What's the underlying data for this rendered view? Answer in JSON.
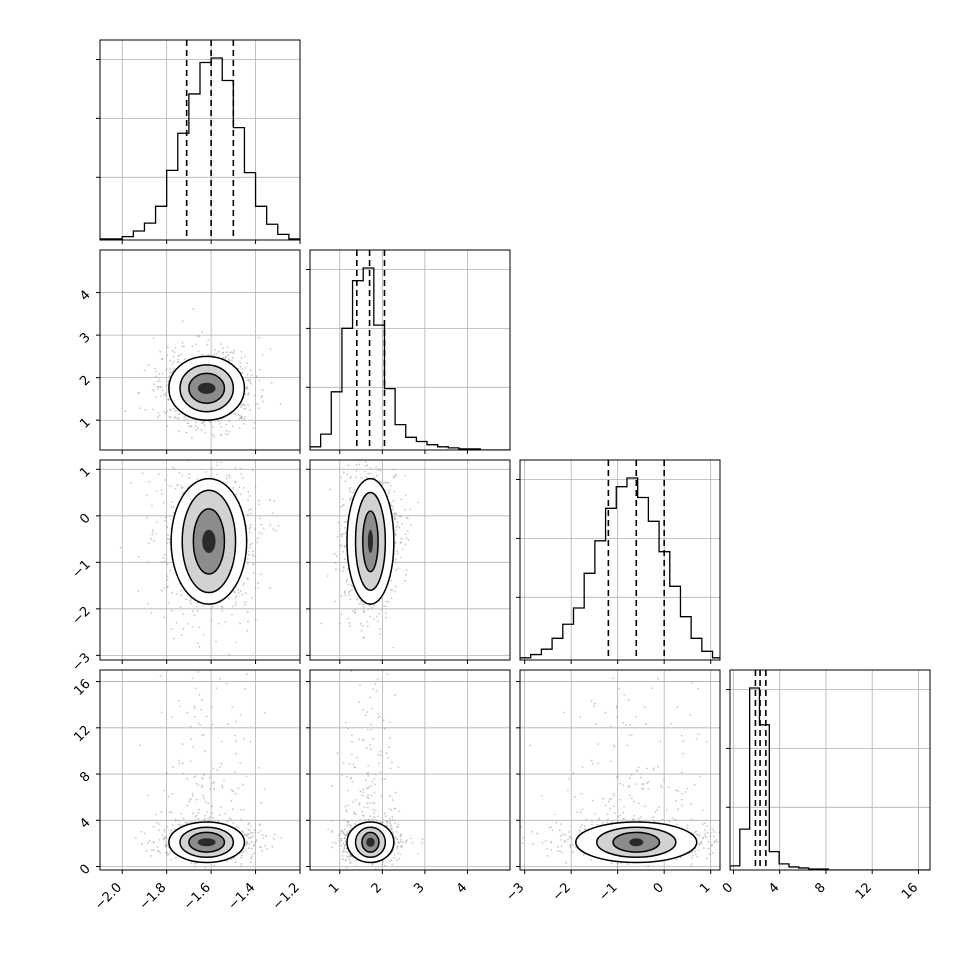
{
  "chart_data": {
    "type": "corner",
    "n_params": 4,
    "grid": true,
    "quantile_lines": "dashed",
    "ranges": [
      [
        -2.1,
        -1.2
      ],
      [
        0.3,
        5.0
      ],
      [
        -3.1,
        1.2
      ],
      [
        -0.3,
        17.0
      ]
    ],
    "tick_labels": [
      [
        "−2.0",
        "−1.8",
        "−1.6",
        "−1.4",
        "−1.2"
      ],
      [
        "1",
        "2",
        "3",
        "4"
      ],
      [
        "−3",
        "−2",
        "−1",
        "0",
        "1"
      ],
      [
        "0",
        "4",
        "8",
        "12",
        "16"
      ]
    ],
    "tick_values": [
      [
        -2.0,
        -1.8,
        -1.6,
        -1.4,
        -1.2
      ],
      [
        1,
        2,
        3,
        4
      ],
      [
        -3,
        -2,
        -1,
        0,
        1
      ],
      [
        0,
        4,
        8,
        12,
        16
      ]
    ],
    "quantiles": [
      [
        -1.71,
        -1.6,
        -1.5
      ],
      [
        1.4,
        1.7,
        2.05
      ],
      [
        -1.2,
        -0.6,
        0.0
      ],
      [
        1.9,
        2.3,
        2.8
      ]
    ],
    "histograms": [
      {
        "param": 0,
        "bins": [
          -2.1,
          -2.05,
          -2.0,
          -1.95,
          -1.9,
          -1.85,
          -1.8,
          -1.75,
          -1.7,
          -1.65,
          -1.6,
          -1.55,
          -1.5,
          -1.45,
          -1.4,
          -1.35,
          -1.3,
          -1.25,
          -1.2
        ],
        "counts": [
          1,
          1,
          3,
          8,
          15,
          30,
          62,
          95,
          130,
          158,
          162,
          142,
          100,
          60,
          30,
          14,
          5,
          1
        ]
      },
      {
        "param": 1,
        "bins": [
          0.3,
          0.55,
          0.8,
          1.05,
          1.3,
          1.55,
          1.8,
          2.05,
          2.3,
          2.55,
          2.8,
          3.05,
          3.3,
          3.55,
          3.8,
          4.05,
          4.3,
          4.55,
          4.8,
          5.0
        ],
        "counts": [
          3,
          15,
          55,
          115,
          160,
          172,
          118,
          58,
          24,
          12,
          8,
          5,
          3,
          2,
          1,
          1,
          0,
          0,
          0
        ]
      },
      {
        "param": 2,
        "bins": [
          -3.1,
          -2.87,
          -2.64,
          -2.41,
          -2.18,
          -1.95,
          -1.72,
          -1.49,
          -1.26,
          -1.03,
          -0.8,
          -0.57,
          -0.34,
          -0.11,
          0.12,
          0.35,
          0.58,
          0.81,
          1.04,
          1.2
        ],
        "counts": [
          2,
          5,
          10,
          20,
          33,
          48,
          80,
          110,
          140,
          160,
          168,
          150,
          128,
          100,
          68,
          40,
          20,
          8,
          2
        ]
      },
      {
        "param": 3,
        "bins": [
          -0.3,
          0.55,
          1.4,
          2.25,
          3.1,
          3.95,
          4.8,
          5.65,
          6.5,
          7.35,
          8.2,
          9.05,
          9.9,
          10.75,
          11.6,
          12.45,
          13.3,
          14.15,
          15.0,
          17.0
        ],
        "counts": [
          4,
          40,
          178,
          142,
          18,
          6,
          3,
          2,
          1,
          1,
          0,
          0,
          0,
          0,
          0,
          0,
          0,
          0,
          0
        ]
      }
    ],
    "pairs": [
      {
        "x_param": 0,
        "y_param": 1,
        "center": [
          -1.62,
          1.75
        ],
        "contour_radii": [
          [
            0.04,
            0.13
          ],
          [
            0.08,
            0.35
          ],
          [
            0.12,
            0.55
          ],
          [
            0.17,
            0.75
          ]
        ]
      },
      {
        "x_param": 0,
        "y_param": 2,
        "center": [
          -1.61,
          -0.55
        ],
        "contour_radii": [
          [
            0.03,
            0.25
          ],
          [
            0.07,
            0.7
          ],
          [
            0.12,
            1.1
          ],
          [
            0.17,
            1.35
          ]
        ]
      },
      {
        "x_param": 1,
        "y_param": 2,
        "center": [
          1.72,
          -0.55
        ],
        "contour_radii": [
          [
            0.06,
            0.25
          ],
          [
            0.18,
            0.65
          ],
          [
            0.35,
            1.05
          ],
          [
            0.55,
            1.35
          ]
        ]
      },
      {
        "x_param": 0,
        "y_param": 3,
        "center": [
          -1.62,
          2.1
        ],
        "contour_radii": [
          [
            0.04,
            0.35
          ],
          [
            0.08,
            0.85
          ],
          [
            0.12,
            1.3
          ],
          [
            0.17,
            1.75
          ]
        ]
      },
      {
        "x_param": 1,
        "y_param": 3,
        "center": [
          1.72,
          2.1
        ],
        "contour_radii": [
          [
            0.1,
            0.4
          ],
          [
            0.2,
            0.85
          ],
          [
            0.35,
            1.3
          ],
          [
            0.55,
            1.75
          ]
        ]
      },
      {
        "x_param": 2,
        "y_param": 3,
        "center": [
          -0.6,
          2.1
        ],
        "contour_radii": [
          [
            0.15,
            0.35
          ],
          [
            0.5,
            0.85
          ],
          [
            0.85,
            1.3
          ],
          [
            1.3,
            1.75
          ]
        ]
      }
    ]
  }
}
